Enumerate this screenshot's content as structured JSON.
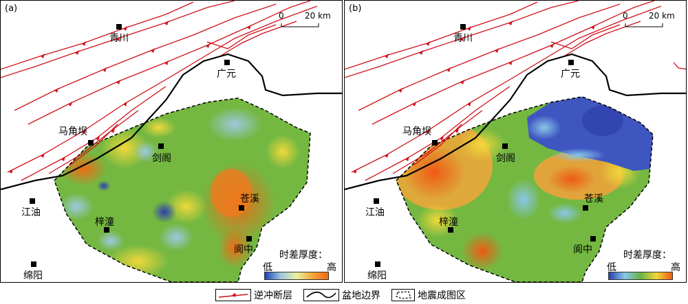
{
  "panels": [
    {
      "label": "(a)",
      "scale_label_zero": "0",
      "scale_label_dist": "20 km",
      "cities": [
        "青川",
        "广元",
        "马角坝",
        "剑阁",
        "苍溪",
        "江油",
        "梓潼",
        "阆中",
        "绵阳"
      ],
      "colorbar": {
        "title": "时差厚度：",
        "low": "低",
        "high": "高",
        "colors": [
          "#1c3fb7",
          "#9ec8e0",
          "#e8f0a0",
          "#f6a63a",
          "#ef6a16"
        ]
      }
    },
    {
      "label": "(b)",
      "scale_label_zero": "0",
      "scale_label_dist": "20 km",
      "cities": [
        "青川",
        "广元",
        "马角坝",
        "剑阁",
        "苍溪",
        "江油",
        "梓潼",
        "阆中",
        "绵阳"
      ],
      "colorbar": {
        "title": "时差厚度：",
        "low": "低",
        "high": "高",
        "colors": [
          "#2d3fb0",
          "#89c6ea",
          "#68b446",
          "#f0d83a",
          "#ef5a14"
        ]
      }
    }
  ],
  "legend": {
    "thrust_fault": "逆冲断层",
    "basin_boundary": "盆地边界",
    "seismic_area": "地震成图区"
  },
  "colors": {
    "fault": "#d0101a",
    "boundary": "#000000",
    "green": "#6cb43c",
    "orange": "#f39a2a",
    "blue": "#3b58c2"
  }
}
